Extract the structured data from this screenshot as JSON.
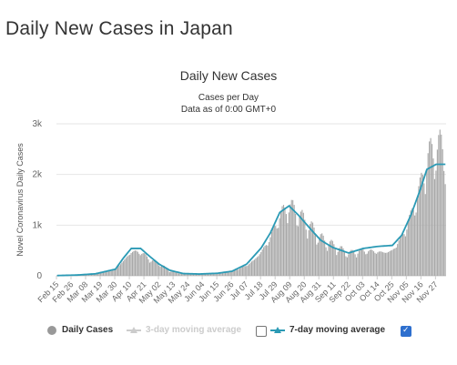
{
  "page_title": "Daily New Cases in Japan",
  "colors": {
    "bar": "#a8a8a8",
    "ma7": "#2b9ab5",
    "ma3": "#c8c8c8",
    "grid": "#e6e6e6",
    "checkbox": "#2e6fce"
  },
  "legend": {
    "daily": "Daily Cases",
    "ma3": "3-day moving average",
    "ma7": "7-day moving average"
  },
  "chart_data": {
    "type": "bar",
    "title": "Daily New Cases",
    "subtitle": "Cases per Day",
    "subtitle2": "Data as of 0:00 GMT+0",
    "ylabel": "Novel Coronavirus Daily Cases",
    "ylim": [
      0,
      3000
    ],
    "yticks": [
      {
        "v": 0,
        "label": "0"
      },
      {
        "v": 1000,
        "label": "1k"
      },
      {
        "v": 2000,
        "label": "2k"
      },
      {
        "v": 3000,
        "label": "3k"
      }
    ],
    "x_range": [
      "2020-02-15",
      "2020-12-04"
    ],
    "xticks": [
      "Feb 15",
      "Feb 26",
      "Mar 08",
      "Mar 19",
      "Mar 30",
      "Apr 10",
      "Apr 21",
      "May 02",
      "May 13",
      "May 24",
      "Jun 04",
      "Jun 15",
      "Jun 26",
      "Jul 07",
      "Jul 18",
      "Jul 29",
      "Aug 09",
      "Aug 20",
      "Aug 31",
      "Sep 11",
      "Sep 22",
      "Oct 03",
      "Oct 14",
      "Oct 25",
      "Nov 05",
      "Nov 16",
      "Nov 27"
    ],
    "series": [
      {
        "name": "Daily Cases",
        "type": "bar",
        "visible": true,
        "keypoints": [
          [
            "2020-02-15",
            5
          ],
          [
            "2020-03-01",
            15
          ],
          [
            "2020-03-15",
            40
          ],
          [
            "2020-03-30",
            150
          ],
          [
            "2020-04-05",
            400
          ],
          [
            "2020-04-11",
            600
          ],
          [
            "2020-04-18",
            550
          ],
          [
            "2020-04-25",
            350
          ],
          [
            "2020-05-02",
            250
          ],
          [
            "2020-05-10",
            100
          ],
          [
            "2020-05-20",
            40
          ],
          [
            "2020-06-01",
            35
          ],
          [
            "2020-06-15",
            50
          ],
          [
            "2020-06-26",
            100
          ],
          [
            "2020-07-07",
            250
          ],
          [
            "2020-07-18",
            600
          ],
          [
            "2020-07-25",
            900
          ],
          [
            "2020-08-01",
            1300
          ],
          [
            "2020-08-08",
            1450
          ],
          [
            "2020-08-15",
            1200
          ],
          [
            "2020-08-25",
            900
          ],
          [
            "2020-09-01",
            700
          ],
          [
            "2020-09-10",
            580
          ],
          [
            "2020-09-22",
            450
          ],
          [
            "2020-10-03",
            550
          ],
          [
            "2020-10-14",
            600
          ],
          [
            "2020-10-25",
            650
          ],
          [
            "2020-11-01",
            900
          ],
          [
            "2020-11-08",
            1300
          ],
          [
            "2020-11-15",
            1800
          ],
          [
            "2020-11-20",
            2300
          ],
          [
            "2020-11-27",
            2450
          ],
          [
            "2020-12-04",
            2350
          ]
        ]
      },
      {
        "name": "3-day moving average",
        "type": "line",
        "visible": false
      },
      {
        "name": "7-day moving average",
        "type": "line",
        "visible": true,
        "keypoints": [
          [
            "2020-02-15",
            5
          ],
          [
            "2020-03-01",
            15
          ],
          [
            "2020-03-15",
            40
          ],
          [
            "2020-03-30",
            130
          ],
          [
            "2020-04-05",
            350
          ],
          [
            "2020-04-11",
            540
          ],
          [
            "2020-04-18",
            540
          ],
          [
            "2020-04-25",
            380
          ],
          [
            "2020-05-02",
            230
          ],
          [
            "2020-05-10",
            110
          ],
          [
            "2020-05-20",
            45
          ],
          [
            "2020-06-01",
            35
          ],
          [
            "2020-06-15",
            50
          ],
          [
            "2020-06-26",
            90
          ],
          [
            "2020-07-07",
            230
          ],
          [
            "2020-07-18",
            550
          ],
          [
            "2020-07-25",
            850
          ],
          [
            "2020-08-01",
            1250
          ],
          [
            "2020-08-08",
            1380
          ],
          [
            "2020-08-15",
            1200
          ],
          [
            "2020-08-25",
            900
          ],
          [
            "2020-09-01",
            700
          ],
          [
            "2020-09-10",
            560
          ],
          [
            "2020-09-22",
            450
          ],
          [
            "2020-10-03",
            540
          ],
          [
            "2020-10-14",
            580
          ],
          [
            "2020-10-25",
            600
          ],
          [
            "2020-11-01",
            800
          ],
          [
            "2020-11-08",
            1200
          ],
          [
            "2020-11-15",
            1700
          ],
          [
            "2020-11-20",
            2100
          ],
          [
            "2020-11-27",
            2200
          ],
          [
            "2020-12-04",
            2200
          ]
        ]
      }
    ]
  }
}
